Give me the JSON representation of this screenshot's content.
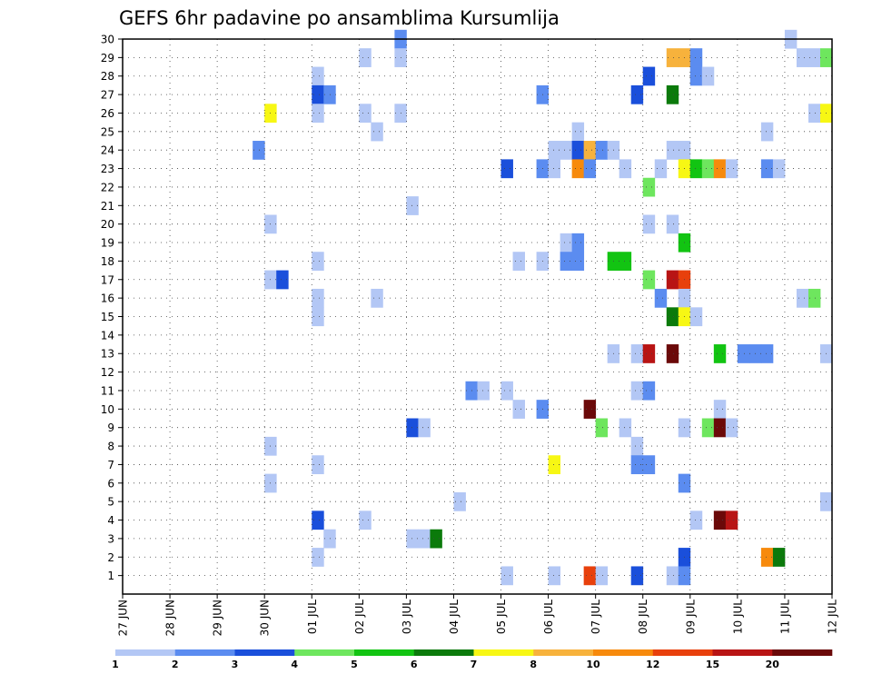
{
  "chart_data": {
    "type": "heatmap",
    "title": "GEFS 6hr padavine po ansamblima Kursumlija",
    "x_tick_labels": [
      "27 JUN",
      "28 JUN",
      "29 JUN",
      "30 JUN",
      "01 JUL",
      "02 JUL",
      "03 JUL",
      "04 JUL",
      "05 JUL",
      "06 JUL",
      "07 JUL",
      "08 JUL",
      "09 JUL",
      "10 JUL",
      "11 JUL",
      "12 JUL"
    ],
    "x_range_days": [
      0,
      15
    ],
    "y_tick_labels": [
      "1",
      "2",
      "3",
      "4",
      "5",
      "6",
      "7",
      "8",
      "9",
      "10",
      "11",
      "12",
      "13",
      "14",
      "15",
      "16",
      "17",
      "18",
      "19",
      "20",
      "21",
      "22",
      "23",
      "24",
      "25",
      "26",
      "27",
      "28",
      "29",
      "30"
    ],
    "ylim": [
      0,
      30
    ],
    "grid": true,
    "cell_width_days": 0.25,
    "colorbar": {
      "labels": [
        "1",
        "2",
        "3",
        "4",
        "5",
        "6",
        "7",
        "8",
        "10",
        "12",
        "15",
        "20"
      ],
      "colors": [
        "#b3c7f5",
        "#5b8cf0",
        "#1a4fdb",
        "#6ee65e",
        "#12c412",
        "#0b7a0b",
        "#f7f714",
        "#f7b23c",
        "#f78a0c",
        "#e8400c",
        "#b81414",
        "#6b0909"
      ]
    },
    "cells": [
      {
        "x": 5.75,
        "y": 30,
        "c": 2
      },
      {
        "x": 14.0,
        "y": 30,
        "c": 1
      },
      {
        "x": 5.0,
        "y": 29,
        "c": 1
      },
      {
        "x": 5.75,
        "y": 29,
        "c": 1
      },
      {
        "x": 11.5,
        "y": 29,
        "c": 8
      },
      {
        "x": 11.75,
        "y": 29,
        "c": 8
      },
      {
        "x": 12.0,
        "y": 29,
        "c": 2
      },
      {
        "x": 14.25,
        "y": 29,
        "c": 1
      },
      {
        "x": 14.5,
        "y": 29,
        "c": 1
      },
      {
        "x": 14.75,
        "y": 29,
        "c": 4
      },
      {
        "x": 4.0,
        "y": 28,
        "c": 1
      },
      {
        "x": 11.0,
        "y": 28,
        "c": 3
      },
      {
        "x": 12.0,
        "y": 28,
        "c": 2
      },
      {
        "x": 12.25,
        "y": 28,
        "c": 1
      },
      {
        "x": 4.0,
        "y": 27,
        "c": 3
      },
      {
        "x": 4.25,
        "y": 27,
        "c": 2
      },
      {
        "x": 8.75,
        "y": 27,
        "c": 2
      },
      {
        "x": 10.75,
        "y": 27,
        "c": 3
      },
      {
        "x": 11.5,
        "y": 27,
        "c": 6
      },
      {
        "x": 3.0,
        "y": 26,
        "c": 7
      },
      {
        "x": 4.0,
        "y": 26,
        "c": 1
      },
      {
        "x": 5.0,
        "y": 26,
        "c": 1
      },
      {
        "x": 5.75,
        "y": 26,
        "c": 1
      },
      {
        "x": 14.5,
        "y": 26,
        "c": 1
      },
      {
        "x": 14.75,
        "y": 26,
        "c": 7
      },
      {
        "x": 5.25,
        "y": 25,
        "c": 1
      },
      {
        "x": 9.5,
        "y": 25,
        "c": 1
      },
      {
        "x": 13.5,
        "y": 25,
        "c": 1
      },
      {
        "x": 2.75,
        "y": 24,
        "c": 2
      },
      {
        "x": 9.0,
        "y": 24,
        "c": 1
      },
      {
        "x": 9.25,
        "y": 24,
        "c": 1
      },
      {
        "x": 9.5,
        "y": 24,
        "c": 3
      },
      {
        "x": 9.75,
        "y": 24,
        "c": 8
      },
      {
        "x": 10.0,
        "y": 24,
        "c": 2
      },
      {
        "x": 10.25,
        "y": 24,
        "c": 1
      },
      {
        "x": 11.5,
        "y": 24,
        "c": 1
      },
      {
        "x": 11.75,
        "y": 24,
        "c": 1
      },
      {
        "x": 8.0,
        "y": 23,
        "c": 3
      },
      {
        "x": 8.75,
        "y": 23,
        "c": 2
      },
      {
        "x": 9.0,
        "y": 23,
        "c": 1
      },
      {
        "x": 9.5,
        "y": 23,
        "c": 9
      },
      {
        "x": 9.75,
        "y": 23,
        "c": 2
      },
      {
        "x": 10.5,
        "y": 23,
        "c": 1
      },
      {
        "x": 11.25,
        "y": 23,
        "c": 1
      },
      {
        "x": 11.75,
        "y": 23,
        "c": 7
      },
      {
        "x": 12.0,
        "y": 23,
        "c": 5
      },
      {
        "x": 12.25,
        "y": 23,
        "c": 4
      },
      {
        "x": 12.5,
        "y": 23,
        "c": 9
      },
      {
        "x": 12.75,
        "y": 23,
        "c": 1
      },
      {
        "x": 13.5,
        "y": 23,
        "c": 2
      },
      {
        "x": 13.75,
        "y": 23,
        "c": 1
      },
      {
        "x": 11.0,
        "y": 22,
        "c": 4
      },
      {
        "x": 6.0,
        "y": 21,
        "c": 1
      },
      {
        "x": 3.0,
        "y": 20,
        "c": 1
      },
      {
        "x": 11.0,
        "y": 20,
        "c": 1
      },
      {
        "x": 11.5,
        "y": 20,
        "c": 1
      },
      {
        "x": 9.25,
        "y": 19,
        "c": 1
      },
      {
        "x": 9.5,
        "y": 19,
        "c": 2
      },
      {
        "x": 11.75,
        "y": 19,
        "c": 5
      },
      {
        "x": 4.0,
        "y": 18,
        "c": 1
      },
      {
        "x": 8.25,
        "y": 18,
        "c": 1
      },
      {
        "x": 8.75,
        "y": 18,
        "c": 1
      },
      {
        "x": 9.25,
        "y": 18,
        "c": 2
      },
      {
        "x": 9.5,
        "y": 18,
        "c": 2
      },
      {
        "x": 10.25,
        "y": 18,
        "c": 5
      },
      {
        "x": 10.5,
        "y": 18,
        "c": 5
      },
      {
        "x": 3.0,
        "y": 17,
        "c": 1
      },
      {
        "x": 3.25,
        "y": 17,
        "c": 3
      },
      {
        "x": 11.0,
        "y": 17,
        "c": 4
      },
      {
        "x": 11.5,
        "y": 17,
        "c": 11
      },
      {
        "x": 11.75,
        "y": 17,
        "c": 10
      },
      {
        "x": 4.0,
        "y": 16,
        "c": 1
      },
      {
        "x": 5.25,
        "y": 16,
        "c": 1
      },
      {
        "x": 11.25,
        "y": 16,
        "c": 2
      },
      {
        "x": 11.75,
        "y": 16,
        "c": 1
      },
      {
        "x": 14.25,
        "y": 16,
        "c": 1
      },
      {
        "x": 14.5,
        "y": 16,
        "c": 4
      },
      {
        "x": 4.0,
        "y": 15,
        "c": 1
      },
      {
        "x": 11.5,
        "y": 15,
        "c": 6
      },
      {
        "x": 11.75,
        "y": 15,
        "c": 7
      },
      {
        "x": 12.0,
        "y": 15,
        "c": 1
      },
      {
        "x": 10.25,
        "y": 13,
        "c": 1
      },
      {
        "x": 10.75,
        "y": 13,
        "c": 1
      },
      {
        "x": 11.0,
        "y": 13,
        "c": 11
      },
      {
        "x": 11.5,
        "y": 13,
        "c": 12
      },
      {
        "x": 12.5,
        "y": 13,
        "c": 5
      },
      {
        "x": 13.0,
        "y": 13,
        "c": 2
      },
      {
        "x": 13.25,
        "y": 13,
        "c": 2
      },
      {
        "x": 13.5,
        "y": 13,
        "c": 2
      },
      {
        "x": 14.75,
        "y": 13,
        "c": 1
      },
      {
        "x": 7.25,
        "y": 11,
        "c": 2
      },
      {
        "x": 7.5,
        "y": 11,
        "c": 1
      },
      {
        "x": 8.0,
        "y": 11,
        "c": 1
      },
      {
        "x": 10.75,
        "y": 11,
        "c": 1
      },
      {
        "x": 11.0,
        "y": 11,
        "c": 2
      },
      {
        "x": 8.25,
        "y": 10,
        "c": 1
      },
      {
        "x": 8.75,
        "y": 10,
        "c": 2
      },
      {
        "x": 9.75,
        "y": 10,
        "c": 12
      },
      {
        "x": 12.5,
        "y": 10,
        "c": 1
      },
      {
        "x": 6.0,
        "y": 9,
        "c": 3
      },
      {
        "x": 6.25,
        "y": 9,
        "c": 1
      },
      {
        "x": 10.0,
        "y": 9,
        "c": 4
      },
      {
        "x": 10.5,
        "y": 9,
        "c": 1
      },
      {
        "x": 11.75,
        "y": 9,
        "c": 1
      },
      {
        "x": 12.25,
        "y": 9,
        "c": 4
      },
      {
        "x": 12.5,
        "y": 9,
        "c": 12
      },
      {
        "x": 12.75,
        "y": 9,
        "c": 1
      },
      {
        "x": 3.0,
        "y": 8,
        "c": 1
      },
      {
        "x": 10.75,
        "y": 8,
        "c": 1
      },
      {
        "x": 4.0,
        "y": 7,
        "c": 1
      },
      {
        "x": 9.0,
        "y": 7,
        "c": 7
      },
      {
        "x": 10.75,
        "y": 7,
        "c": 2
      },
      {
        "x": 11.0,
        "y": 7,
        "c": 2
      },
      {
        "x": 3.0,
        "y": 6,
        "c": 1
      },
      {
        "x": 11.75,
        "y": 6,
        "c": 2
      },
      {
        "x": 7.0,
        "y": 5,
        "c": 1
      },
      {
        "x": 14.75,
        "y": 5,
        "c": 1
      },
      {
        "x": 4.0,
        "y": 4,
        "c": 3
      },
      {
        "x": 5.0,
        "y": 4,
        "c": 1
      },
      {
        "x": 12.0,
        "y": 4,
        "c": 1
      },
      {
        "x": 12.5,
        "y": 4,
        "c": 12
      },
      {
        "x": 12.75,
        "y": 4,
        "c": 11
      },
      {
        "x": 4.25,
        "y": 3,
        "c": 1
      },
      {
        "x": 6.0,
        "y": 3,
        "c": 1
      },
      {
        "x": 6.25,
        "y": 3,
        "c": 1
      },
      {
        "x": 6.5,
        "y": 3,
        "c": 6
      },
      {
        "x": 4.0,
        "y": 2,
        "c": 1
      },
      {
        "x": 11.75,
        "y": 2,
        "c": 3
      },
      {
        "x": 13.5,
        "y": 2,
        "c": 9
      },
      {
        "x": 13.75,
        "y": 2,
        "c": 6
      },
      {
        "x": 8.0,
        "y": 1,
        "c": 1
      },
      {
        "x": 9.0,
        "y": 1,
        "c": 1
      },
      {
        "x": 9.75,
        "y": 1,
        "c": 10
      },
      {
        "x": 10.0,
        "y": 1,
        "c": 1
      },
      {
        "x": 10.75,
        "y": 1,
        "c": 3
      },
      {
        "x": 11.5,
        "y": 1,
        "c": 1
      },
      {
        "x": 11.75,
        "y": 1,
        "c": 2
      }
    ]
  }
}
